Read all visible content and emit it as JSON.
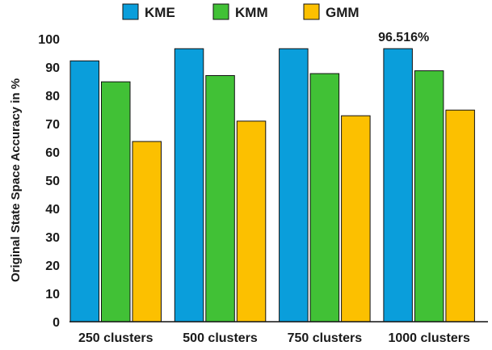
{
  "chart_data": {
    "type": "bar",
    "title": "",
    "xlabel": "",
    "ylabel": "Original State Space Accuracy in %",
    "ylim": [
      0,
      100
    ],
    "yticks": [
      0,
      10,
      20,
      30,
      40,
      50,
      60,
      70,
      80,
      90,
      100
    ],
    "grid": false,
    "legend_position": "top",
    "categories": [
      "250 clusters",
      "500 clusters",
      "750 clusters",
      "1000 clusters"
    ],
    "series": [
      {
        "name": "KME",
        "color": "#0a9edb",
        "values": [
          92.2,
          96.5,
          96.5,
          96.516
        ]
      },
      {
        "name": "KMM",
        "color": "#41c136",
        "values": [
          84.8,
          87.0,
          87.7,
          88.7
        ]
      },
      {
        "name": "GMM",
        "color": "#fcc000",
        "values": [
          63.7,
          70.9,
          72.8,
          74.8
        ]
      }
    ],
    "annotations": [
      {
        "text": "96.516%",
        "category": "1000 clusters",
        "series": "KME"
      }
    ]
  }
}
